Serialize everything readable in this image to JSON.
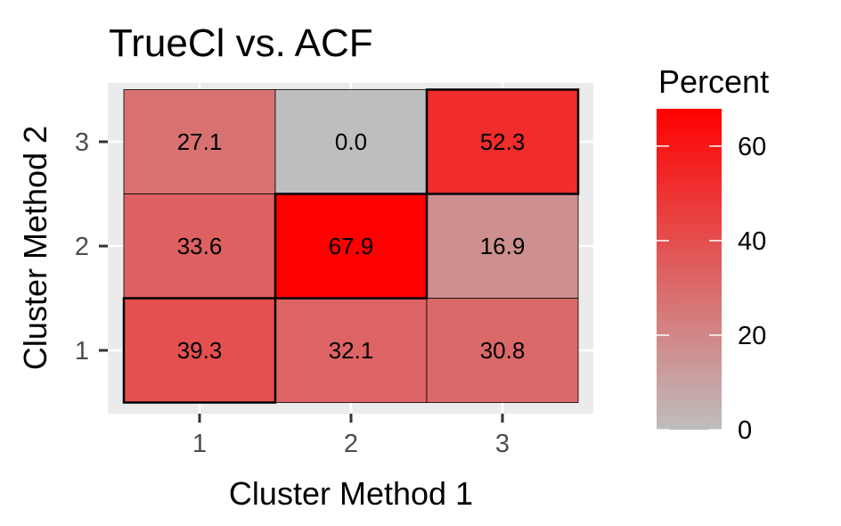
{
  "chart_data": {
    "type": "heatmap",
    "title": "TrueCl vs. ACF",
    "xlabel": "Cluster Method 1",
    "ylabel": "Cluster Method 2",
    "x_categories": [
      "1",
      "2",
      "3"
    ],
    "y_categories": [
      "1",
      "2",
      "3"
    ],
    "cells": [
      {
        "x": "1",
        "y": "3",
        "value": 27.1,
        "label": "27.1",
        "outlined": false
      },
      {
        "x": "2",
        "y": "3",
        "value": 0.0,
        "label": "0.0",
        "outlined": false
      },
      {
        "x": "3",
        "y": "3",
        "value": 52.3,
        "label": "52.3",
        "outlined": true
      },
      {
        "x": "1",
        "y": "2",
        "value": 33.6,
        "label": "33.6",
        "outlined": false
      },
      {
        "x": "2",
        "y": "2",
        "value": 67.9,
        "label": "67.9",
        "outlined": true
      },
      {
        "x": "3",
        "y": "2",
        "value": 16.9,
        "label": "16.9",
        "outlined": false
      },
      {
        "x": "1",
        "y": "1",
        "value": 39.3,
        "label": "39.3",
        "outlined": true
      },
      {
        "x": "2",
        "y": "1",
        "value": 32.1,
        "label": "32.1",
        "outlined": false
      },
      {
        "x": "3",
        "y": "1",
        "value": 30.8,
        "label": "30.8",
        "outlined": false
      }
    ],
    "legend": {
      "title": "Percent",
      "placement": "right",
      "range": [
        0,
        67.9
      ],
      "ticks": [
        0,
        20,
        40,
        60
      ],
      "tick_labels": [
        "0",
        "20",
        "40",
        "60"
      ],
      "low_color": "#bebebe",
      "high_color": "#ff0000"
    },
    "panel_background": "#ebebeb",
    "grid": true
  }
}
